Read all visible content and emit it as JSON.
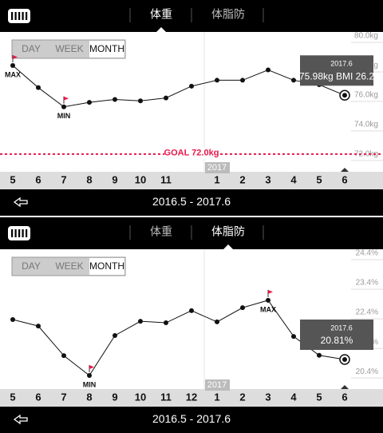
{
  "panels": [
    {
      "tabs": [
        "体重",
        "体脂防"
      ],
      "active_tab": 0,
      "range_buttons": [
        "DAY",
        "WEEK",
        "MONTH"
      ],
      "selected_button": 2,
      "date_range": "2016.5 - 2017.6"
    },
    {
      "tabs": [
        "体重",
        "体脂防"
      ],
      "active_tab": 1,
      "range_buttons": [
        "DAY",
        "WEEK",
        "MONTH"
      ],
      "selected_button": 2,
      "date_range": "2016.5 - 2017.6"
    }
  ],
  "chart_data": [
    {
      "type": "line",
      "color": "#111111",
      "categories": [
        "5",
        "6",
        "7",
        "8",
        "9",
        "10",
        "11",
        null,
        "1",
        "2",
        "3",
        "4",
        "5",
        "6"
      ],
      "values": [
        78.0,
        76.5,
        75.2,
        75.5,
        75.7,
        75.6,
        75.8,
        76.6,
        77.0,
        77.0,
        77.7,
        77.0,
        76.7,
        75.98
      ],
      "ylim": [
        70.8,
        80
      ],
      "yticks": [
        {
          "value": 80,
          "label": "80.0kg"
        },
        {
          "value": 78,
          "label": "78.0kg"
        },
        {
          "value": 76,
          "label": "76.0kg"
        },
        {
          "value": 74,
          "label": "74.0kg"
        },
        {
          "value": 72,
          "label": "72.0kg"
        }
      ],
      "max_label": "MAX",
      "min_label": "MIN",
      "year_marker": "2017",
      "goal": {
        "value": 72,
        "label": "GOAL 72.0kg",
        "color": "#e8174a"
      },
      "tooltip": {
        "date": "2017.6",
        "text": "75.98kg  BMI 26.2"
      }
    },
    {
      "type": "line",
      "color": "#111111",
      "categories": [
        "5",
        "6",
        "7",
        "8",
        "9",
        "10",
        "11",
        "12",
        "1",
        "2",
        "3",
        "4",
        "5",
        "6"
      ],
      "values": [
        22.16,
        21.94,
        20.94,
        20.27,
        21.62,
        22.1,
        22.05,
        22.46,
        22.08,
        22.56,
        22.81,
        21.59,
        20.95,
        20.81
      ],
      "ylim": [
        19.81,
        24.4
      ],
      "yticks": [
        {
          "value": 24.4,
          "label": "24.4%"
        },
        {
          "value": 23.4,
          "label": "23.4%"
        },
        {
          "value": 22.4,
          "label": "22.4%"
        },
        {
          "value": 21.4,
          "label": "21.4%"
        },
        {
          "value": 20.4,
          "label": "20.4%"
        }
      ],
      "max_label": "MAX",
      "min_label": "MIN",
      "year_marker": "2017",
      "tooltip": {
        "date": "2017.6",
        "text": "20.81%"
      }
    }
  ]
}
